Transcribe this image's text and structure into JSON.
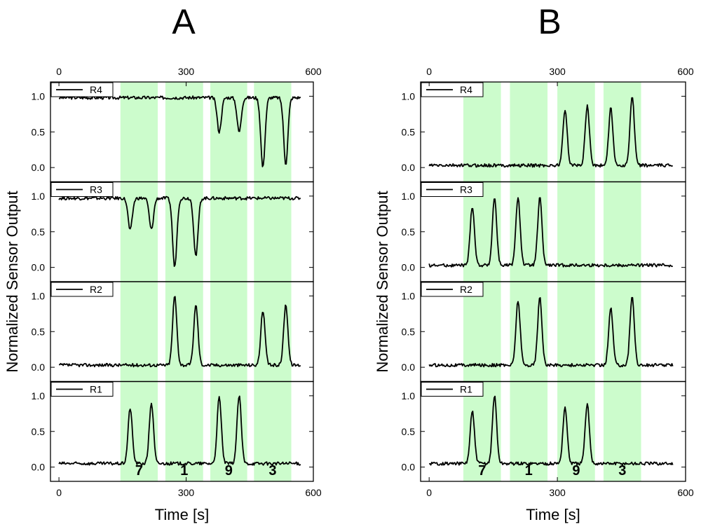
{
  "chart_data": [
    {
      "type": "line",
      "panel_label": "A",
      "xlabel": "Time [s]",
      "ylabel": "Normalized Sensor Output",
      "xlim": [
        -20,
        600
      ],
      "ylim": [
        -0.2,
        1.2
      ],
      "x_ticks": [
        0,
        300,
        600
      ],
      "y_ticks": [
        0.0,
        0.5,
        1.0
      ],
      "y_tick_labels": [
        "0.0",
        "0.5",
        "1.0"
      ],
      "legend_placement": "top-left",
      "stimulus_bands": [
        {
          "label": "7",
          "x_start": 145,
          "x_end": 233
        },
        {
          "label": "1",
          "x_start": 251,
          "x_end": 340
        },
        {
          "label": "9",
          "x_start": 357,
          "x_end": 444
        },
        {
          "label": "3",
          "x_start": 460,
          "x_end": 548
        }
      ],
      "series": [
        {
          "name": "R4",
          "baseline": 0.98,
          "extrema": [
            {
              "x": 378,
              "y": 0.5,
              "w": 7
            },
            {
              "x": 425,
              "y": 0.5,
              "w": 7
            },
            {
              "x": 481,
              "y": 0.0,
              "w": 7
            },
            {
              "x": 535,
              "y": 0.05,
              "w": 7
            }
          ]
        },
        {
          "name": "R3",
          "baseline": 0.97,
          "extrema": [
            {
              "x": 168,
              "y": 0.52,
              "w": 7
            },
            {
              "x": 218,
              "y": 0.53,
              "w": 7
            },
            {
              "x": 273,
              "y": 0.0,
              "w": 7
            },
            {
              "x": 323,
              "y": 0.16,
              "w": 7
            }
          ]
        },
        {
          "name": "R2",
          "baseline": 0.03,
          "extrema": [
            {
              "x": 273,
              "y": 1.0,
              "w": 7
            },
            {
              "x": 323,
              "y": 0.87,
              "w": 7
            },
            {
              "x": 481,
              "y": 0.79,
              "w": 7
            },
            {
              "x": 535,
              "y": 0.88,
              "w": 7
            }
          ]
        },
        {
          "name": "R1",
          "baseline": 0.05,
          "extrema": [
            {
              "x": 168,
              "y": 0.83,
              "w": 7
            },
            {
              "x": 218,
              "y": 0.9,
              "w": 7
            },
            {
              "x": 378,
              "y": 0.98,
              "w": 7
            },
            {
              "x": 425,
              "y": 1.0,
              "w": 7
            }
          ]
        }
      ]
    },
    {
      "type": "line",
      "panel_label": "B",
      "xlabel": "Time [s]",
      "ylabel": "Normalized Sensor Output",
      "xlim": [
        -20,
        600
      ],
      "ylim": [
        -0.2,
        1.2
      ],
      "x_ticks": [
        0,
        300,
        600
      ],
      "y_ticks": [
        0.0,
        0.5,
        1.0
      ],
      "y_tick_labels": [
        "0.0",
        "0.5",
        "1.0"
      ],
      "legend_placement": "top-left",
      "stimulus_bands": [
        {
          "label": "7",
          "x_start": 80,
          "x_end": 168
        },
        {
          "label": "1",
          "x_start": 189,
          "x_end": 277
        },
        {
          "label": "9",
          "x_start": 300,
          "x_end": 388
        },
        {
          "label": "3",
          "x_start": 408,
          "x_end": 496
        }
      ],
      "series": [
        {
          "name": "R4",
          "baseline": 0.03,
          "extrema": [
            {
              "x": 318,
              "y": 0.81,
              "w": 7
            },
            {
              "x": 370,
              "y": 0.87,
              "w": 7
            },
            {
              "x": 425,
              "y": 0.83,
              "w": 7
            },
            {
              "x": 475,
              "y": 1.0,
              "w": 7
            }
          ]
        },
        {
          "name": "R3",
          "baseline": 0.03,
          "extrema": [
            {
              "x": 101,
              "y": 0.86,
              "w": 7
            },
            {
              "x": 153,
              "y": 0.98,
              "w": 7
            },
            {
              "x": 208,
              "y": 0.99,
              "w": 7
            },
            {
              "x": 259,
              "y": 0.98,
              "w": 7
            }
          ]
        },
        {
          "name": "R2",
          "baseline": 0.03,
          "extrema": [
            {
              "x": 208,
              "y": 0.94,
              "w": 7
            },
            {
              "x": 259,
              "y": 0.98,
              "w": 7
            },
            {
              "x": 425,
              "y": 0.83,
              "w": 7
            },
            {
              "x": 475,
              "y": 1.0,
              "w": 7
            }
          ]
        },
        {
          "name": "R1",
          "baseline": 0.05,
          "extrema": [
            {
              "x": 101,
              "y": 0.78,
              "w": 7
            },
            {
              "x": 153,
              "y": 1.0,
              "w": 7
            },
            {
              "x": 318,
              "y": 0.84,
              "w": 7
            },
            {
              "x": 370,
              "y": 0.88,
              "w": 7
            }
          ]
        }
      ]
    }
  ]
}
